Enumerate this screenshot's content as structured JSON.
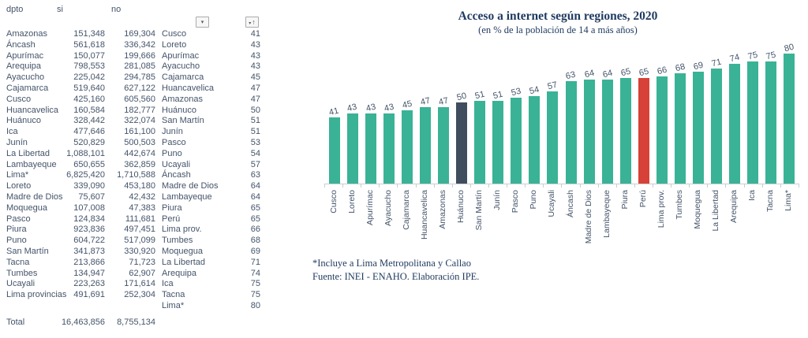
{
  "colors": {
    "bar_teal": "#3AB296",
    "bar_dark": "#3F4D5F",
    "bar_red": "#D84137",
    "table_text": "#44546A",
    "title_navy": "#1F3A5F",
    "axis_gray": "#C9CDD2"
  },
  "table": {
    "headers": {
      "dpto": "dpto",
      "si": "si",
      "no": "no"
    },
    "filter_icon": "▾",
    "sort_chevron_icon": "▾",
    "sort_arrow_icon": "↑",
    "rows": [
      {
        "name": "Amazonas",
        "si": "151,348",
        "no": "169,304",
        "region": "Cusco",
        "pct": "41"
      },
      {
        "name": "Áncash",
        "si": "561,618",
        "no": "336,342",
        "region": "Loreto",
        "pct": "43"
      },
      {
        "name": "Apurímac",
        "si": "150,077",
        "no": "199,666",
        "region": "Apurímac",
        "pct": "43"
      },
      {
        "name": "Arequipa",
        "si": "798,553",
        "no": "281,085",
        "region": "Ayacucho",
        "pct": "43"
      },
      {
        "name": "Ayacucho",
        "si": "225,042",
        "no": "294,785",
        "region": "Cajamarca",
        "pct": "45"
      },
      {
        "name": "Cajamarca",
        "si": "519,640",
        "no": "627,122",
        "region": "Huancavelica",
        "pct": "47"
      },
      {
        "name": "Cusco",
        "si": "425,160",
        "no": "605,560",
        "region": "Amazonas",
        "pct": "47"
      },
      {
        "name": "Huancavelica",
        "si": "160,584",
        "no": "182,777",
        "region": "Huánuco",
        "pct": "50"
      },
      {
        "name": "Huánuco",
        "si": "328,442",
        "no": "322,074",
        "region": "San Martín",
        "pct": "51"
      },
      {
        "name": "Ica",
        "si": "477,646",
        "no": "161,100",
        "region": "Junín",
        "pct": "51"
      },
      {
        "name": "Junín",
        "si": "520,829",
        "no": "500,503",
        "region": "Pasco",
        "pct": "53"
      },
      {
        "name": "La Libertad",
        "si": "1,088,101",
        "no": "442,674",
        "region": "Puno",
        "pct": "54"
      },
      {
        "name": "Lambayeque",
        "si": "650,655",
        "no": "362,859",
        "region": "Ucayali",
        "pct": "57"
      },
      {
        "name": "Lima*",
        "si": "6,825,420",
        "no": "1,710,588",
        "region": "Áncash",
        "pct": "63"
      },
      {
        "name": "Loreto",
        "si": "339,090",
        "no": "453,180",
        "region": "Madre de Dios",
        "pct": "64"
      },
      {
        "name": "Madre de Dios",
        "si": "75,607",
        "no": "42,432",
        "region": "Lambayeque",
        "pct": "64"
      },
      {
        "name": "Moquegua",
        "si": "107,008",
        "no": "47,383",
        "region": "Piura",
        "pct": "65"
      },
      {
        "name": "Pasco",
        "si": "124,834",
        "no": "111,681",
        "region": "Perú",
        "pct": "65"
      },
      {
        "name": "Piura",
        "si": "923,836",
        "no": "497,451",
        "region": "Lima prov.",
        "pct": "66"
      },
      {
        "name": "Puno",
        "si": "604,722",
        "no": "517,099",
        "region": "Tumbes",
        "pct": "68"
      },
      {
        "name": "San Martín",
        "si": "341,873",
        "no": "330,920",
        "region": "Moquegua",
        "pct": "69"
      },
      {
        "name": "Tacna",
        "si": "213,866",
        "no": "71,723",
        "region": "La Libertad",
        "pct": "71"
      },
      {
        "name": "Tumbes",
        "si": "134,947",
        "no": "62,907",
        "region": "Arequipa",
        "pct": "74"
      },
      {
        "name": "Ucayali",
        "si": "223,263",
        "no": "171,614",
        "region": "Ica",
        "pct": "75"
      },
      {
        "name": "Lima provincias",
        "si": "491,691",
        "no": "252,304",
        "region": "Tacna",
        "pct": "75"
      },
      {
        "name": "",
        "si": "",
        "no": "",
        "region": "Lima*",
        "pct": "80"
      }
    ],
    "total_row": {
      "label": "Total",
      "si": "16,463,856",
      "no": "8,755,134"
    }
  },
  "chart": {
    "title": "Acceso a internet según regiones, 2020",
    "subtitle": "(en % de la población de 14 a más años)",
    "footnote1": "*Incluye a Lima Metropolitana y Callao",
    "footnote2": "Fuente: INEI - ENAHO. Elaboración IPE."
  },
  "chart_data": {
    "type": "bar",
    "title": "Acceso a internet según regiones, 2020",
    "subtitle": "(en % de la población de 14 a más años)",
    "xlabel": "",
    "ylabel": "% de la población de 14 a más años",
    "categories": [
      "Cusco",
      "Loreto",
      "Apurímac",
      "Ayacucho",
      "Cajamarca",
      "Huancavelica",
      "Amazonas",
      "Huánuco",
      "San Martín",
      "Junín",
      "Pasco",
      "Puno",
      "Ucayali",
      "Áncash",
      "Madre de Dios",
      "Lambayeque",
      "Piura",
      "Perú",
      "Lima prov.",
      "Tumbes",
      "Moquegua",
      "La Libertad",
      "Arequipa",
      "Ica",
      "Tacna",
      "Lima*"
    ],
    "values": [
      41,
      43,
      43,
      43,
      45,
      47,
      47,
      50,
      51,
      51,
      53,
      54,
      57,
      63,
      64,
      64,
      65,
      65,
      66,
      68,
      69,
      71,
      74,
      75,
      75,
      80
    ],
    "data_labels": true,
    "gridlines": false,
    "legend": false,
    "ylim": [
      0,
      85
    ],
    "bar_default_color": "#3AB296",
    "highlighted_bars": [
      {
        "category": "Huánuco",
        "color": "#3F4D5F"
      },
      {
        "category": "Perú",
        "color": "#D84137"
      }
    ]
  }
}
